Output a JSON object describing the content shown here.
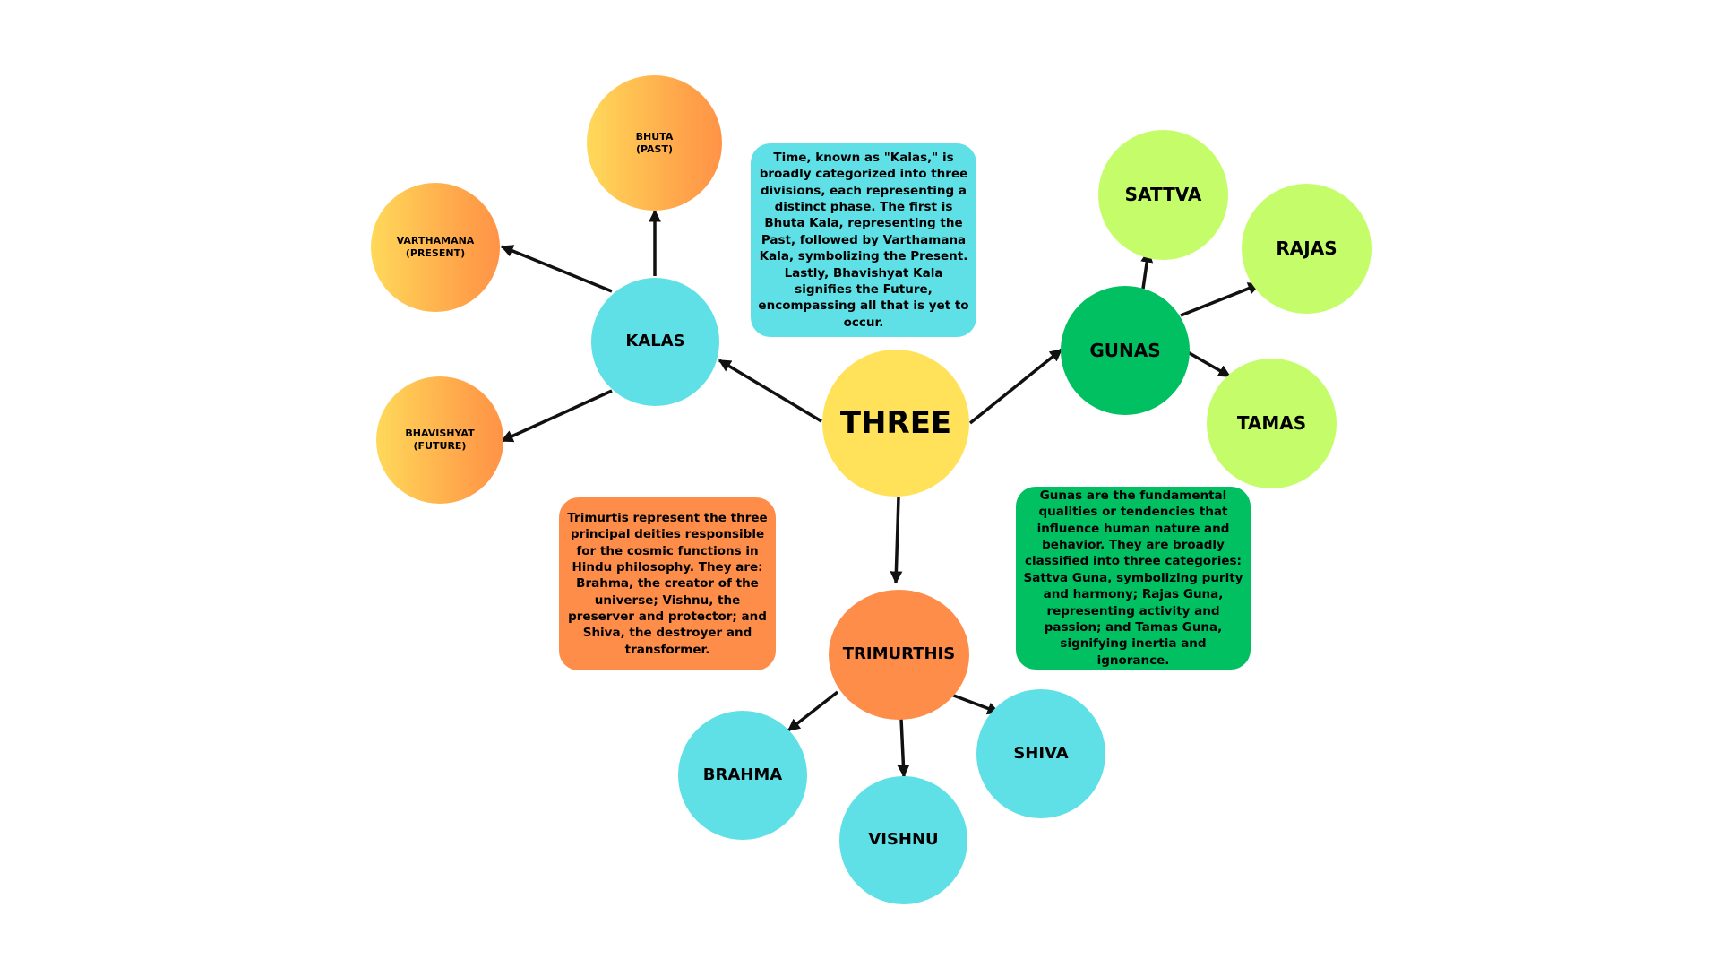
{
  "diagram": {
    "center": {
      "label": "THREE"
    },
    "kalas": {
      "label": "KALAS",
      "children": [
        {
          "label": "BHUTA\n(PAST)"
        },
        {
          "label": "VARTHAMANA\n(PRESENT)"
        },
        {
          "label": "BHAVISHYAT\n(FUTURE)"
        }
      ],
      "description": "Time, known as \"Kalas,\" is broadly categorized into three divisions, each representing a distinct phase. The first is Bhuta Kala, representing the Past, followed by Varthamana Kala, symbolizing the Present. Lastly, Bhavishyat Kala signifies the Future, encompassing all that is yet to occur."
    },
    "gunas": {
      "label": "GUNAS",
      "children": [
        {
          "label": "SATTVA"
        },
        {
          "label": "RAJAS"
        },
        {
          "label": "TAMAS"
        }
      ],
      "description": "Gunas are the fundamental qualities or tendencies that influence human nature and behavior. They are broadly classified into three categories: Sattva Guna, symbolizing purity and harmony; Rajas Guna, representing activity and passion; and Tamas Guna, signifying inertia and ignorance."
    },
    "trimurthis": {
      "label": "TRIMURTHIS",
      "children": [
        {
          "label": "BRAHMA"
        },
        {
          "label": "VISHNU"
        },
        {
          "label": "SHIVA"
        }
      ],
      "description": "Trimurtis represent the three principal deities responsible for the cosmic functions in Hindu philosophy. They are: Brahma, the creator of the universe; Vishnu, the preserver and protector; and Shiva, the destroyer and transformer."
    }
  },
  "colors": {
    "cyan": "#5ee0e6",
    "yellow": "#ffe15a",
    "orange": "#ff8d4a",
    "green": "#00c061",
    "lime": "#c5fd6a",
    "arrow": "#111111"
  }
}
